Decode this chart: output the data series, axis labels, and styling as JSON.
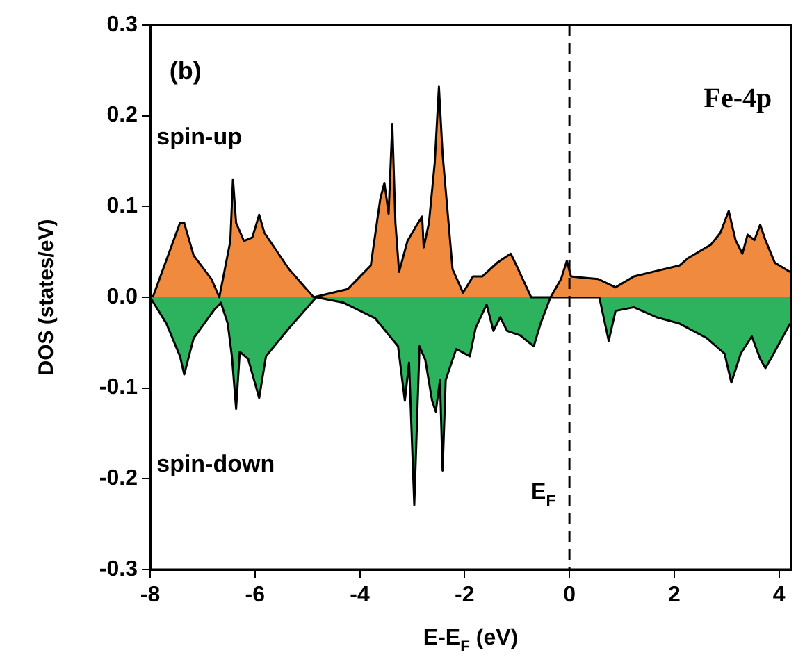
{
  "chart_data": {
    "type": "area",
    "xlabel": "E-E$_{F}$ (eV)",
    "ylabel": "DOS (states/eV)",
    "annotations": [
      "(b)",
      "Fe-4p",
      "spin-up",
      "spin-down"
    ],
    "xlim": [
      -8,
      4.23
    ],
    "xticks": [
      -8,
      -6,
      -4,
      -2,
      0,
      2,
      4
    ],
    "ylim": [
      -0.3,
      0.3
    ],
    "yticks": [
      -0.3,
      -0.2,
      -0.1,
      {
        "value": 0,
        "label": "0.0"
      },
      0.1,
      0.2,
      0.3
    ],
    "ref_lines": [
      {
        "axis": "x",
        "value": 0,
        "label": "E$_{F}$",
        "color": "#000000",
        "line_style": "dashed"
      }
    ],
    "series": [
      {
        "color": "#f08a3e",
        "x": [
          -7.95,
          -7.43,
          -7.35,
          -7.17,
          -6.83,
          -6.68,
          -6.47,
          -6.42,
          -6.36,
          -6.21,
          -6.05,
          -5.92,
          -5.82,
          -5.35,
          -4.88,
          -4.23,
          -3.79,
          -3.61,
          -3.53,
          -3.45,
          -3.38,
          -3.32,
          -3.25,
          -3.09,
          -2.94,
          -2.81,
          -2.78,
          -2.68,
          -2.57,
          -2.49,
          -2.42,
          -2.23,
          -2.03,
          -1.84,
          -1.66,
          -1.38,
          -1.12,
          -1.01,
          -0.73,
          -0.36,
          -0.16,
          -0.05,
          0.03,
          0.18,
          0.55,
          0.88,
          1.23,
          1.66,
          2.1,
          2.26,
          2.7,
          2.88,
          3.04,
          3.17,
          3.3,
          3.4,
          3.53,
          3.64,
          3.74,
          3.92,
          4.21
        ],
        "values": [
          0,
          0.082,
          0.082,
          0.046,
          0.02,
          0,
          0.062,
          0.13,
          0.082,
          0.062,
          0.066,
          0.091,
          0.071,
          0.031,
          0,
          0.009,
          0.035,
          0.108,
          0.126,
          0.092,
          0.191,
          0.082,
          0.028,
          0.062,
          0.077,
          0.089,
          0.055,
          0.082,
          0.148,
          0.232,
          0.158,
          0.031,
          0.005,
          0.023,
          0.023,
          0.038,
          0.048,
          0.035,
          0,
          0,
          0.02,
          0.04,
          0.023,
          0.022,
          0.02,
          0.011,
          0.023,
          0.029,
          0.035,
          0.043,
          0.058,
          0.071,
          0.095,
          0.063,
          0.048,
          0.069,
          0.063,
          0.08,
          0.063,
          0.038,
          0.028
        ]
      },
      {
        "color": "#2db35d",
        "x": [
          -8,
          -7.69,
          -7.43,
          -7.35,
          -7.17,
          -6.78,
          -6.65,
          -6.52,
          -6.44,
          -6.36,
          -6.29,
          -6.13,
          -5.92,
          -5.79,
          -5.35,
          -4.83,
          -4.31,
          -3.71,
          -3.27,
          -3.14,
          -3.06,
          -2.96,
          -2.86,
          -2.75,
          -2.62,
          -2.55,
          -2.47,
          -2.42,
          -2.36,
          -2.16,
          -1.9,
          -1.79,
          -1.58,
          -1.45,
          -1.32,
          -1.19,
          -0.94,
          -0.68,
          -0.55,
          -0.36,
          0.57,
          0.75,
          0.88,
          1.23,
          1.66,
          2.1,
          2.62,
          2.96,
          3.09,
          3.27,
          3.48,
          3.64,
          3.74,
          3.87,
          4.21
        ],
        "values": [
          0,
          -0.029,
          -0.065,
          -0.085,
          -0.045,
          -0.014,
          -0.006,
          -0.029,
          -0.065,
          -0.123,
          -0.06,
          -0.068,
          -0.111,
          -0.065,
          -0.034,
          0,
          -0.006,
          -0.023,
          -0.054,
          -0.114,
          -0.072,
          -0.229,
          -0.054,
          -0.069,
          -0.114,
          -0.126,
          -0.091,
          -0.191,
          -0.091,
          -0.057,
          -0.065,
          -0.034,
          -0.008,
          -0.037,
          -0.022,
          -0.037,
          -0.042,
          -0.054,
          -0.029,
          0,
          0,
          -0.048,
          -0.015,
          -0.011,
          -0.022,
          -0.029,
          -0.045,
          -0.062,
          -0.094,
          -0.062,
          -0.043,
          -0.068,
          -0.078,
          -0.065,
          -0.029
        ]
      }
    ]
  }
}
